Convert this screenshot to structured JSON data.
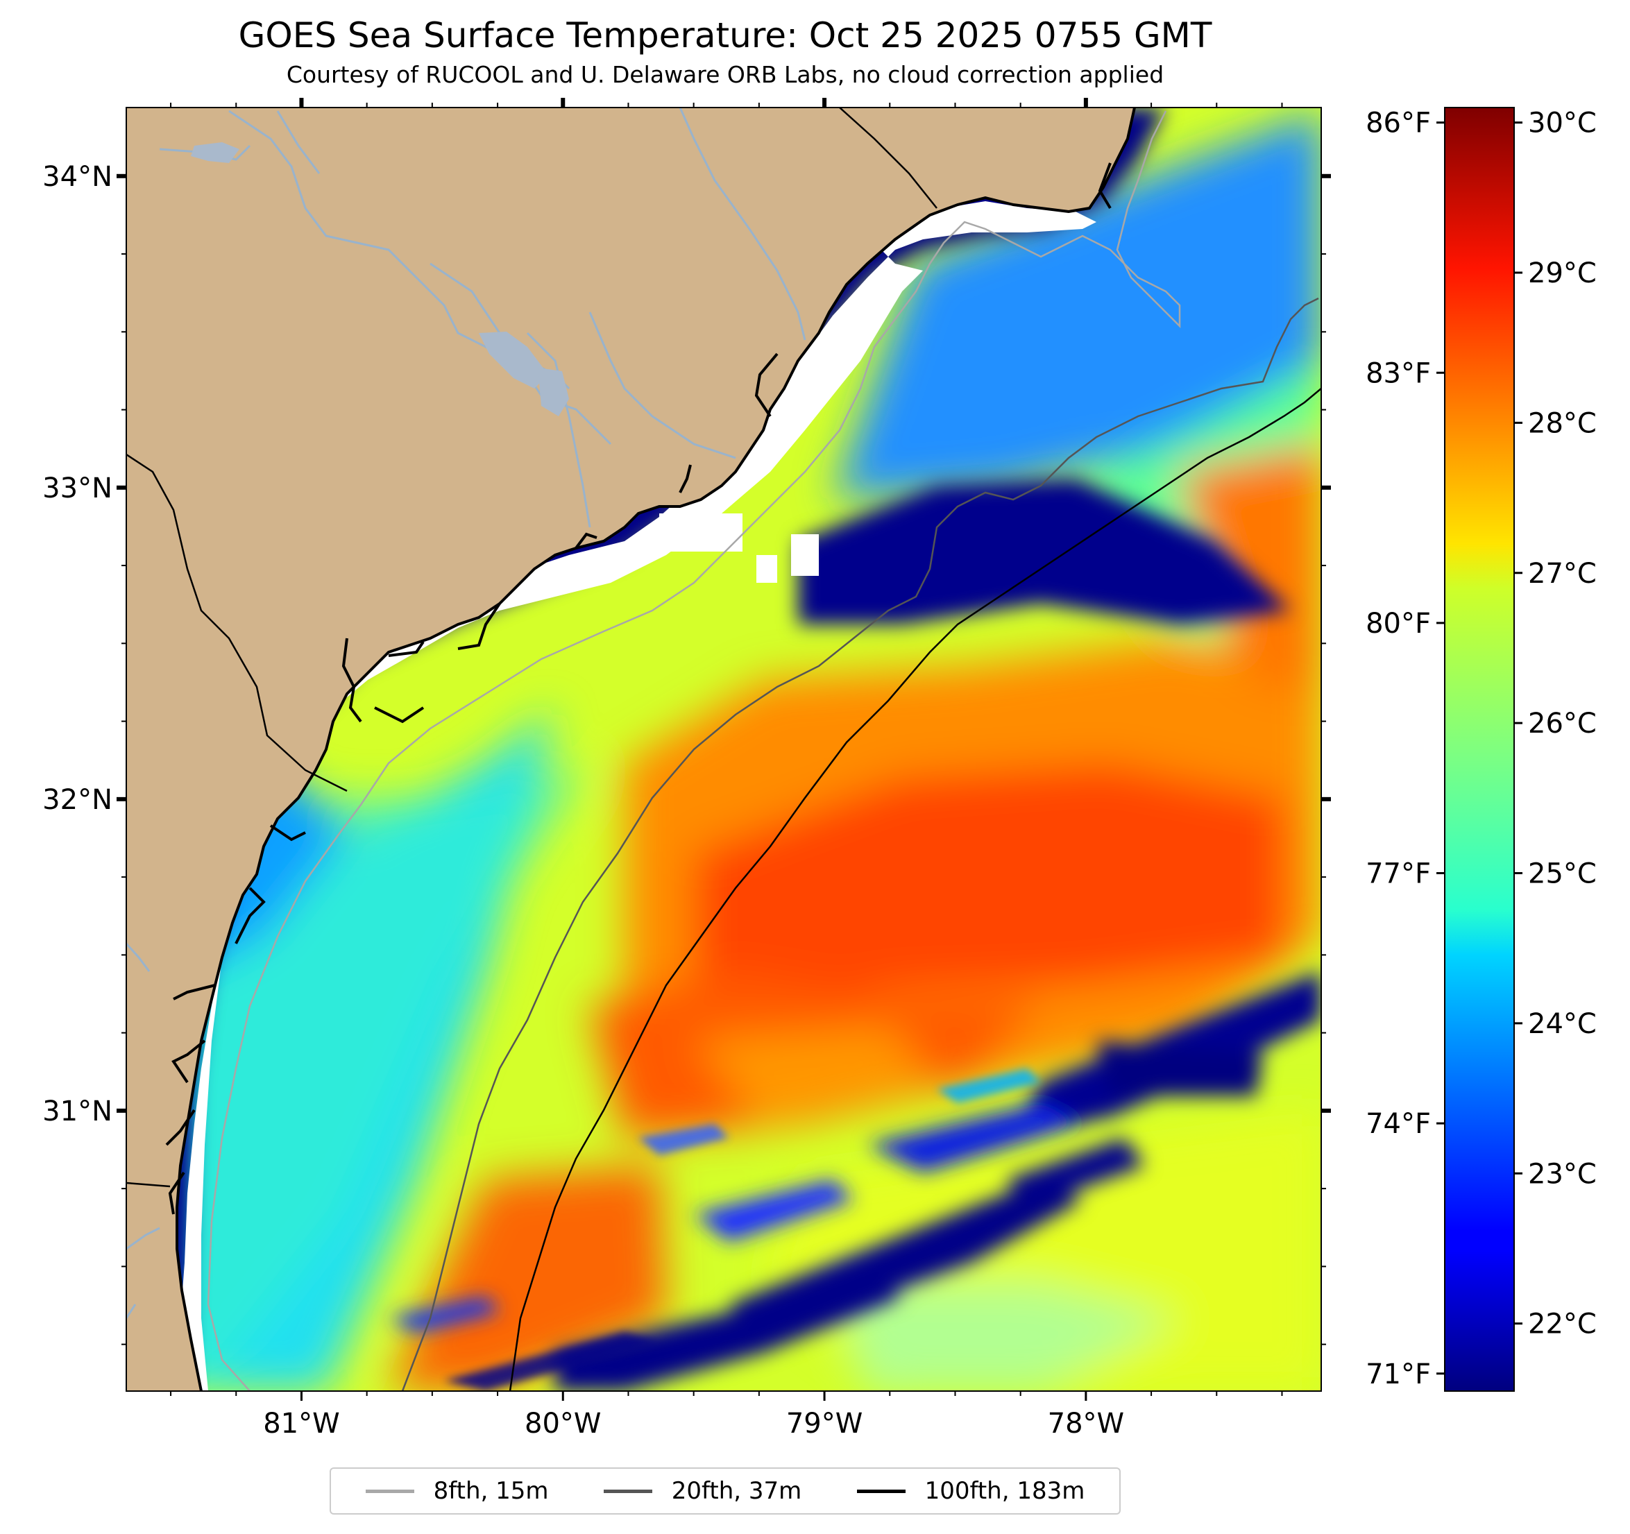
{
  "title": "GOES Sea Surface Temperature: Oct 25 2025 0755 GMT",
  "subtitle": "Courtesy of RUCOOL and U. Delaware ORB Labs, no cloud correction applied",
  "map": {
    "lon_range": [
      -81.67,
      -77.1
    ],
    "lat_range": [
      30.1,
      34.22
    ],
    "lon_ticks": [
      {
        "value": -81,
        "label": "81°W"
      },
      {
        "value": -80,
        "label": "80°W"
      },
      {
        "value": -79,
        "label": "79°W"
      },
      {
        "value": -78,
        "label": "78°W"
      }
    ],
    "lat_ticks": [
      {
        "value": 34,
        "label": "34°N"
      },
      {
        "value": 33,
        "label": "33°N"
      },
      {
        "value": 32,
        "label": "32°N"
      },
      {
        "value": 31,
        "label": "31°N"
      }
    ],
    "land_color": "#d2b48c",
    "river_color": "#99b3cc"
  },
  "colorbar": {
    "vmin_c": 21.55,
    "vmax_c": 30.1,
    "celsius_ticks": [
      {
        "value": 22,
        "label": "22°C"
      },
      {
        "value": 23,
        "label": "23°C"
      },
      {
        "value": 24,
        "label": "24°C"
      },
      {
        "value": 25,
        "label": "25°C"
      },
      {
        "value": 26,
        "label": "26°C"
      },
      {
        "value": 27,
        "label": "27°C"
      },
      {
        "value": 28,
        "label": "28°C"
      },
      {
        "value": 29,
        "label": "29°C"
      },
      {
        "value": 30,
        "label": "30°C"
      }
    ],
    "fahrenheit_ticks": [
      {
        "value": 71,
        "label": "71°F"
      },
      {
        "value": 74,
        "label": "74°F"
      },
      {
        "value": 77,
        "label": "77°F"
      },
      {
        "value": 80,
        "label": "80°F"
      },
      {
        "value": 83,
        "label": "83°F"
      },
      {
        "value": 86,
        "label": "86°F"
      }
    ],
    "colormap": "jet"
  },
  "legend": {
    "placement": "bottom-center",
    "items": [
      {
        "label": "8fth, 15m",
        "color": "#a8a8a8"
      },
      {
        "label": "20fth, 37m",
        "color": "#555555"
      },
      {
        "label": "100fth, 183m",
        "color": "#000000"
      }
    ]
  }
}
